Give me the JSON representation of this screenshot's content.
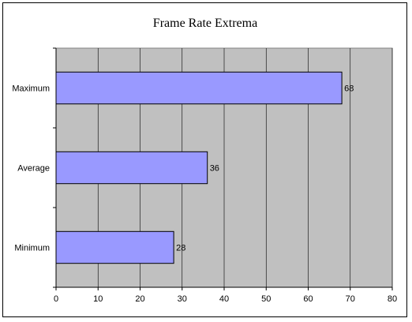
{
  "chart_data": {
    "type": "bar",
    "orientation": "horizontal",
    "title": "Frame Rate Extrema",
    "categories": [
      "Maximum",
      "Average",
      "Minimum"
    ],
    "values": [
      68,
      36,
      28
    ],
    "data_labels": [
      "68",
      "36",
      "28"
    ],
    "xlim": [
      0,
      80
    ],
    "x_ticks": [
      0,
      10,
      20,
      30,
      40,
      50,
      60,
      70,
      80
    ],
    "x_tick_labels": [
      "0",
      "10",
      "20",
      "30",
      "40",
      "50",
      "60",
      "70",
      "80"
    ],
    "grid": true,
    "legend": "none",
    "colors": {
      "bar_fill": "#9999ff",
      "bar_stroke": "#000000",
      "plot_background": "#c0c0c0",
      "gridline": "#000000",
      "chart_background": "#ffffff"
    }
  }
}
